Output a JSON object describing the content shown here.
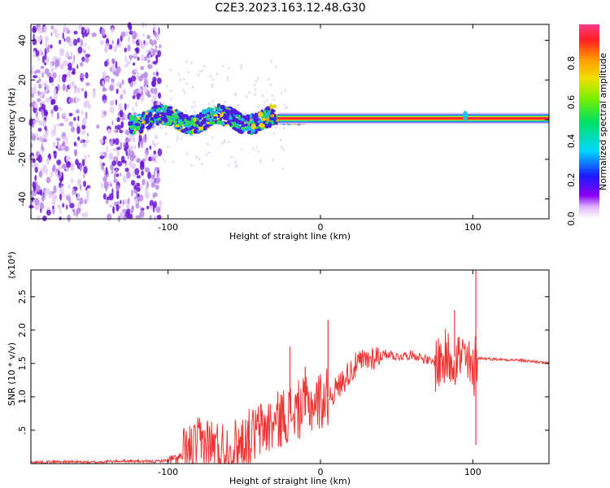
{
  "title": "C2E3.2023.163.12.48.G30",
  "chart_data": [
    {
      "type": "heatmap",
      "xlabel": "Height of straight line (km)",
      "ylabel": "Frequency (Hz)",
      "xlim": [
        -190,
        150
      ],
      "ylim": [
        -50,
        48
      ],
      "x_ticks": [
        -100,
        0,
        100
      ],
      "y_ticks": [
        -40,
        -20,
        0,
        20,
        40
      ],
      "grid": false,
      "colorbar": {
        "label": "Normalized spectral amplitude",
        "range": [
          0,
          1
        ],
        "ticks": [
          0.0,
          0.2,
          0.4,
          0.6,
          0.8
        ],
        "colormap": "rainbow (white, violet, blue, cyan, green, yellow, orange, red)"
      },
      "features": [
        {
          "x_range": [
            -190,
            -110
          ],
          "freq_range": [
            -50,
            48
          ],
          "amplitude": "low-moderate (violet, scattered)"
        },
        {
          "x_range": [
            -120,
            -30
          ],
          "freq_range": [
            -8,
            8
          ],
          "amplitude": "moderate (blue-green), wavy band near 0 Hz"
        },
        {
          "x_range": [
            -30,
            150
          ],
          "freq_range": [
            0,
            1.5
          ],
          "amplitude": "high (red) steady line at about 0.5 Hz"
        }
      ]
    },
    {
      "type": "line",
      "xlabel": "Height of straight line (km)",
      "ylabel": "SNR (10 * v/v)",
      "y_multiplier": "(x10⁴)",
      "xlim": [
        -190,
        150
      ],
      "ylim": [
        0,
        2.9
      ],
      "x_ticks": [
        -100,
        0,
        100
      ],
      "y_ticks": [
        0.5,
        1.0,
        1.5,
        2.0,
        2.5
      ],
      "grid": false,
      "series_color": "#ee3333",
      "x": [
        -190,
        -170,
        -150,
        -130,
        -110,
        -100,
        -95,
        -90,
        -85,
        -80,
        -75,
        -70,
        -65,
        -60,
        -55,
        -50,
        -45,
        -40,
        -35,
        -30,
        -25,
        -20,
        -15,
        -10,
        -5,
        0,
        5,
        10,
        15,
        20,
        25,
        30,
        35,
        40,
        45,
        50,
        55,
        60,
        65,
        70,
        75,
        80,
        85,
        90,
        95,
        100,
        102,
        105,
        110,
        120,
        130,
        140,
        150
      ],
      "y": [
        0.02,
        0.03,
        0.02,
        0.04,
        0.03,
        0.05,
        0.07,
        0.1,
        0.18,
        0.25,
        0.3,
        0.25,
        0.22,
        0.2,
        0.25,
        0.35,
        0.4,
        0.5,
        0.55,
        0.6,
        0.7,
        0.75,
        0.8,
        0.85,
        0.9,
        0.95,
        1.0,
        1.1,
        1.25,
        1.4,
        1.5,
        1.55,
        1.6,
        1.62,
        1.65,
        1.6,
        1.62,
        1.63,
        1.6,
        1.55,
        1.5,
        1.55,
        1.6,
        1.6,
        1.55,
        1.3,
        1.58,
        1.58,
        1.57,
        1.56,
        1.55,
        1.53,
        1.5
      ],
      "peaks": [
        [
          -20,
          1.75
        ],
        [
          -10,
          1.45
        ],
        [
          5,
          2.15
        ],
        [
          88,
          2.3
        ],
        [
          102,
          2.9
        ],
        [
          102,
          0.28
        ]
      ]
    }
  ]
}
